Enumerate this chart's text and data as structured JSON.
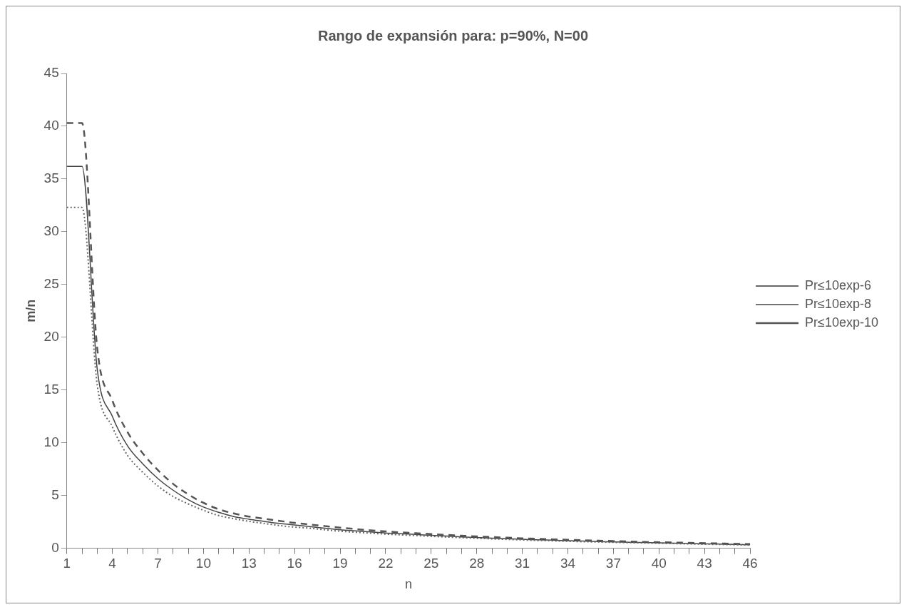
{
  "chart_data": {
    "type": "line",
    "title": "Rango de expansión para: p=90%, N=00",
    "xlabel": "n",
    "ylabel": "m/n",
    "categories": [
      "1",
      null,
      null,
      "4",
      null,
      null,
      "7",
      null,
      null,
      "10",
      null,
      null,
      "13",
      null,
      null,
      "16",
      null,
      null,
      "19",
      null,
      null,
      "22",
      null,
      null,
      "25",
      null,
      null,
      "28",
      null,
      null,
      "31",
      null,
      null,
      "34",
      null,
      null,
      "37",
      null,
      null,
      "40",
      null,
      null,
      "43",
      null,
      null,
      "46"
    ],
    "series": [
      {
        "name": "Pr≤10exp-6",
        "color": "#666666",
        "line_style": "dotted",
        "values": [
          32.3,
          32.3,
          15.5,
          11.5,
          8.8,
          7.2,
          5.9,
          4.9,
          4.2,
          3.6,
          3.1,
          2.8,
          2.55,
          2.35,
          2.15,
          2.0,
          1.9,
          1.75,
          1.62,
          1.52,
          1.43,
          1.34,
          1.27,
          1.2,
          1.13,
          1.06,
          1.0,
          0.94,
          0.89,
          0.84,
          0.79,
          0.74,
          0.7,
          0.66,
          0.62,
          0.59,
          0.56,
          0.53,
          0.5,
          0.47,
          0.44,
          0.41,
          0.38,
          0.36,
          0.33,
          0.3
        ]
      },
      {
        "name": "Pr≤10exp-8",
        "color": "#444444",
        "line_style": "solid",
        "values": [
          36.2,
          36.2,
          17,
          12.5,
          9.7,
          8,
          6.6,
          5.5,
          4.6,
          3.9,
          3.4,
          3.0,
          2.75,
          2.55,
          2.35,
          2.2,
          2.05,
          1.9,
          1.75,
          1.65,
          1.55,
          1.45,
          1.38,
          1.3,
          1.22,
          1.15,
          1.08,
          1.02,
          0.96,
          0.9,
          0.85,
          0.8,
          0.76,
          0.72,
          0.68,
          0.64,
          0.6,
          0.57,
          0.54,
          0.51,
          0.48,
          0.45,
          0.42,
          0.39,
          0.36,
          0.33
        ]
      },
      {
        "name": "Pr≤10exp-10",
        "color": "#555555",
        "line_style": "dashed",
        "values": [
          40.3,
          40.3,
          19,
          14,
          11,
          9,
          7.4,
          6.1,
          5.1,
          4.3,
          3.7,
          3.3,
          3.0,
          2.8,
          2.6,
          2.4,
          2.25,
          2.1,
          1.95,
          1.82,
          1.7,
          1.6,
          1.5,
          1.42,
          1.34,
          1.26,
          1.19,
          1.12,
          1.06,
          1.0,
          0.94,
          0.89,
          0.84,
          0.8,
          0.76,
          0.72,
          0.68,
          0.64,
          0.6,
          0.57,
          0.54,
          0.51,
          0.48,
          0.45,
          0.42,
          0.39
        ]
      }
    ],
    "ylim": [
      0,
      45
    ],
    "yticks": [
      0,
      5,
      10,
      15,
      20,
      25,
      30,
      35,
      40,
      45
    ],
    "grid": false,
    "legend": "right"
  }
}
